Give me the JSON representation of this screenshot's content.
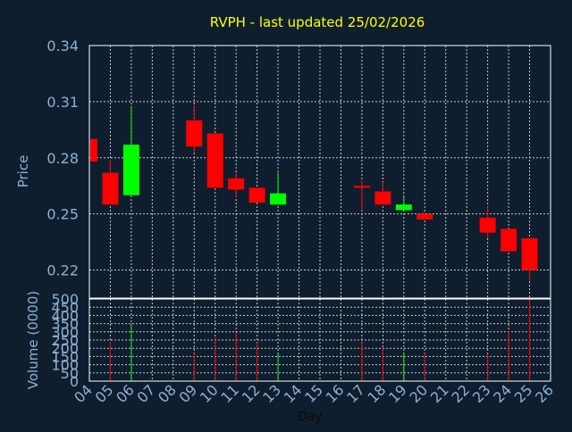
{
  "colors": {
    "background": "#0f1e2f",
    "title": "#ffff00",
    "axis_text": "#8fb0d0",
    "grid": "#c8c8c8",
    "up": "#00ff00",
    "down": "#ff0000"
  },
  "chart_data": [
    {
      "type": "candlestick",
      "title": "RVPH - last updated 25/02/2026",
      "ylabel": "Price",
      "ylim": [
        0.205,
        0.34
      ],
      "yticks": [
        "0.34",
        "0.31",
        "0.28",
        "0.25",
        "0.22"
      ],
      "ytick_values": [
        0.34,
        0.31,
        0.28,
        0.25,
        0.22
      ],
      "grid": true,
      "days": [
        "04",
        "05",
        "06",
        "07",
        "08",
        "09",
        "10",
        "11",
        "12",
        "13",
        "14",
        "15",
        "16",
        "17",
        "18",
        "19",
        "20",
        "21",
        "22",
        "23",
        "24",
        "25",
        "26"
      ],
      "candles": [
        {
          "day": "04",
          "open": 0.29,
          "high": 0.29,
          "low": 0.278,
          "close": 0.278
        },
        {
          "day": "05",
          "open": 0.272,
          "high": 0.279,
          "low": 0.255,
          "close": 0.255
        },
        {
          "day": "06",
          "open": 0.26,
          "high": 0.307,
          "low": 0.26,
          "close": 0.287
        },
        {
          "day": "09",
          "open": 0.3,
          "high": 0.308,
          "low": 0.283,
          "close": 0.286
        },
        {
          "day": "10",
          "open": 0.293,
          "high": 0.293,
          "low": 0.264,
          "close": 0.264
        },
        {
          "day": "11",
          "open": 0.269,
          "high": 0.272,
          "low": 0.259,
          "close": 0.263
        },
        {
          "day": "12",
          "open": 0.264,
          "high": 0.264,
          "low": 0.256,
          "close": 0.256
        },
        {
          "day": "13",
          "open": 0.255,
          "high": 0.272,
          "low": 0.255,
          "close": 0.261
        },
        {
          "day": "17",
          "open": 0.265,
          "high": 0.268,
          "low": 0.252,
          "close": 0.264
        },
        {
          "day": "18",
          "open": 0.262,
          "high": 0.267,
          "low": 0.255,
          "close": 0.255
        },
        {
          "day": "19",
          "open": 0.252,
          "high": 0.259,
          "low": 0.252,
          "close": 0.255
        },
        {
          "day": "20",
          "open": 0.25,
          "high": 0.25,
          "low": 0.247,
          "close": 0.247
        },
        {
          "day": "23",
          "open": 0.248,
          "high": 0.254,
          "low": 0.237,
          "close": 0.24
        },
        {
          "day": "24",
          "open": 0.242,
          "high": 0.242,
          "low": 0.23,
          "close": 0.23
        },
        {
          "day": "25",
          "open": 0.237,
          "high": 0.237,
          "low": 0.214,
          "close": 0.22
        }
      ]
    },
    {
      "type": "bar",
      "ylabel": "Volume (0000)",
      "xlabel": "Day",
      "ylim": [
        0,
        500
      ],
      "yticks": [
        "500",
        "450",
        "400",
        "350",
        "300",
        "250",
        "200",
        "150",
        "100",
        "50",
        "0"
      ],
      "ytick_values": [
        500,
        450,
        400,
        350,
        300,
        250,
        200,
        150,
        100,
        50,
        0
      ],
      "grid": true,
      "days": [
        "04",
        "05",
        "06",
        "07",
        "08",
        "09",
        "10",
        "11",
        "12",
        "13",
        "14",
        "15",
        "16",
        "17",
        "18",
        "19",
        "20",
        "21",
        "22",
        "23",
        "24",
        "25",
        "26"
      ],
      "volumes": [
        {
          "day": "05",
          "value": 240,
          "dir": "down"
        },
        {
          "day": "06",
          "value": 350,
          "dir": "up"
        },
        {
          "day": "09",
          "value": 170,
          "dir": "down"
        },
        {
          "day": "10",
          "value": 265,
          "dir": "down"
        },
        {
          "day": "11",
          "value": 295,
          "dir": "down"
        },
        {
          "day": "12",
          "value": 235,
          "dir": "down"
        },
        {
          "day": "13",
          "value": 165,
          "dir": "up"
        },
        {
          "day": "17",
          "value": 235,
          "dir": "down"
        },
        {
          "day": "18",
          "value": 200,
          "dir": "down"
        },
        {
          "day": "19",
          "value": 175,
          "dir": "up"
        },
        {
          "day": "20",
          "value": 170,
          "dir": "down"
        },
        {
          "day": "23",
          "value": 165,
          "dir": "down"
        },
        {
          "day": "24",
          "value": 305,
          "dir": "down"
        },
        {
          "day": "25",
          "value": 500,
          "dir": "down"
        }
      ]
    }
  ]
}
